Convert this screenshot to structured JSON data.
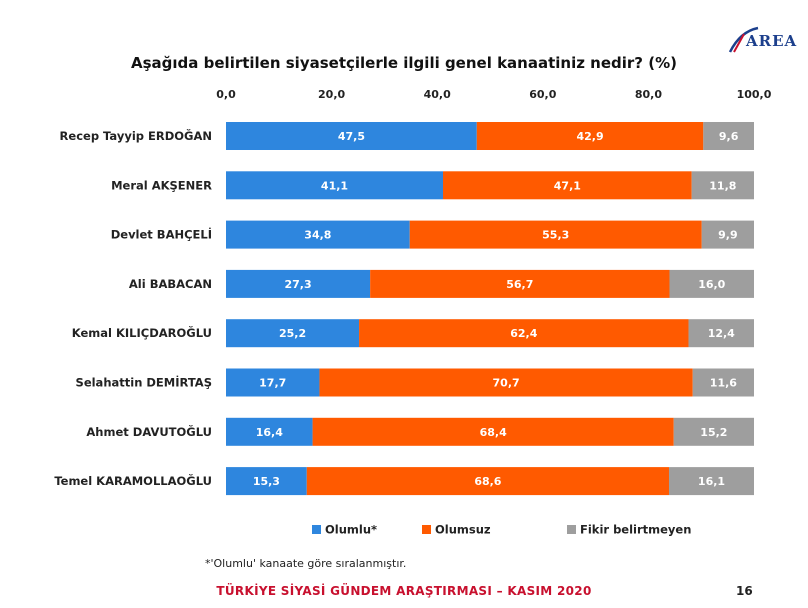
{
  "brand": {
    "logo_text": "AREA",
    "logo_color": "#1c3f8c"
  },
  "chart_data": {
    "type": "bar",
    "orientation": "horizontal",
    "stacked": true,
    "title": "Aşağıda belirtilen siyasetçilerle ilgili genel kanaatiniz nedir? (%)",
    "categories": [
      "Recep Tayyip ERDOĞAN",
      "Meral AKŞENER",
      "Devlet BAHÇELİ",
      "Ali BABACAN",
      "Kemal KILIÇDAROĞLU",
      "Selahattin DEMİRTAŞ",
      "Ahmet DAVUTOĞLU",
      "Temel KARAMOLLAOĞLU"
    ],
    "series": [
      {
        "name": "Olumlu*",
        "color": "#2e86de",
        "values": [
          47.5,
          41.1,
          34.8,
          27.3,
          25.2,
          17.7,
          16.4,
          15.3
        ]
      },
      {
        "name": "Olumsuz",
        "color": "#ff5a00",
        "values": [
          42.9,
          47.1,
          55.3,
          56.7,
          62.4,
          70.7,
          68.4,
          68.6
        ]
      },
      {
        "name": "Fikir belirtmeyen",
        "color": "#9e9e9e",
        "values": [
          9.6,
          11.8,
          9.9,
          16.0,
          12.4,
          11.6,
          15.2,
          16.1
        ]
      }
    ],
    "labels": [
      [
        "47,5",
        "41,1",
        "34,8",
        "27,3",
        "25,2",
        "17,7",
        "16,4",
        "15,3"
      ],
      [
        "42,9",
        "47,1",
        "55,3",
        "56,7",
        "62,4",
        "70,7",
        "68,4",
        "68,6"
      ],
      [
        "9,6",
        "11,8",
        "9,9",
        "16,0",
        "12,4",
        "11,6",
        "15,2",
        "16,1"
      ]
    ],
    "xticks": [
      0,
      20,
      40,
      60,
      80,
      100
    ],
    "xtick_labels": [
      "0,0",
      "20,0",
      "40,0",
      "60,0",
      "80,0",
      "100,0"
    ],
    "xlim": [
      0,
      100
    ],
    "axis_position": "top",
    "grid": false,
    "legend_position": "bottom"
  },
  "footnote": "*'Olumlu' kanaate göre sıralanmıştır.",
  "footer": {
    "title": "TÜRKİYE SİYASİ GÜNDEM ARAŞTIRMASI – KASIM 2020",
    "page_number": "16"
  }
}
